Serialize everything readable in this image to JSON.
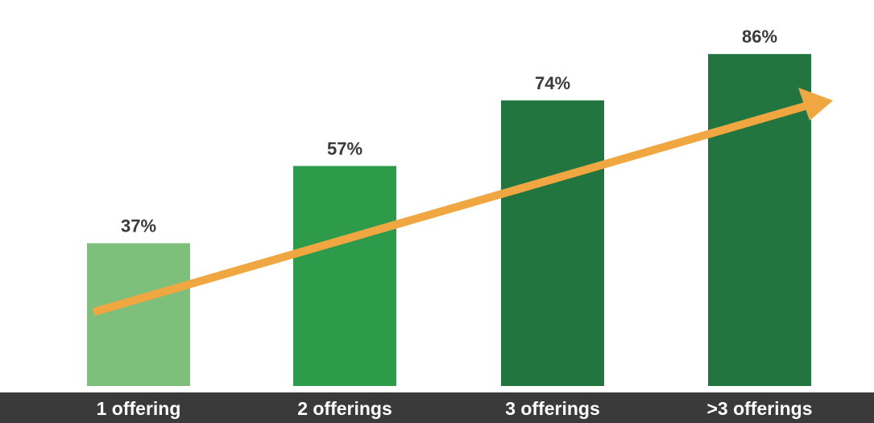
{
  "chart_data": {
    "type": "bar",
    "categories": [
      "1 offering",
      "2 offerings",
      "3 offerings",
      ">3 offerings"
    ],
    "values": [
      37,
      57,
      74,
      86
    ],
    "value_labels": [
      "37%",
      "57%",
      "74%",
      "86%"
    ],
    "title": "",
    "xlabel": "",
    "ylabel": "",
    "ylim": [
      0,
      100
    ],
    "grid": false,
    "legend": "none",
    "trend_arrow": true,
    "colors": {
      "bars": [
        "#7dbf7b",
        "#2e9b4b",
        "#237540",
        "#237540"
      ],
      "trend_arrow": "#f0a742",
      "category_band": "#3a3a3a",
      "category_text": "#ffffff",
      "value_text": "#3a3a3a"
    }
  }
}
